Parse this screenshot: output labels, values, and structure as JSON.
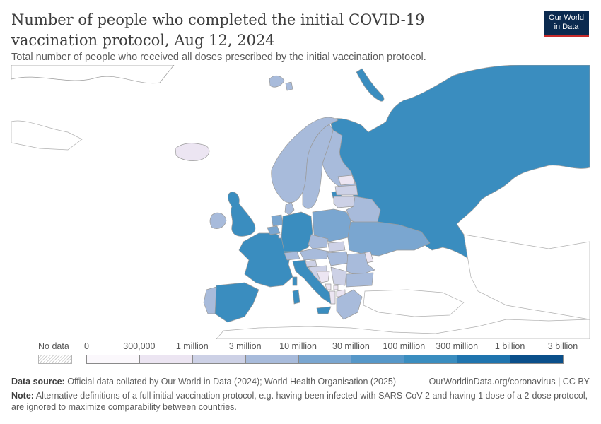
{
  "header": {
    "title": "Number of people who completed the initial COVID-19 vaccination protocol, Aug 12, 2024",
    "subtitle": "Total number of people who received all doses prescribed by the initial vaccination protocol.",
    "logo_line1": "Our World",
    "logo_line2": "in Data"
  },
  "legend": {
    "no_data_label": "No data",
    "bins": [
      {
        "label": "0",
        "color": "#fbf8fc"
      },
      {
        "label": "300,000",
        "color": "#ece5f2"
      },
      {
        "label": "1 million",
        "color": "#cdd1e6"
      },
      {
        "label": "3 million",
        "color": "#a8bbdb"
      },
      {
        "label": "10 million",
        "color": "#7aa6d0"
      },
      {
        "label": "30 million",
        "color": "#5697c8"
      },
      {
        "label": "100 million",
        "color": "#3a8dbf"
      },
      {
        "label": "300 million",
        "color": "#1f74ae"
      },
      {
        "label": "1 billion",
        "color": "#0a4f8a"
      },
      {
        "label": "3 billion",
        "color": null
      }
    ]
  },
  "footer": {
    "source_label": "Data source:",
    "source_text": "Official data collated by Our World in Data (2024); World Health Organisation (2025)",
    "url_text": "OurWorldinData.org/coronavirus | CC BY",
    "note_label": "Note:",
    "note_text": "Alternative definitions of a full initial vaccination protocol, e.g. having been infected with SARS-CoV-2 and having 1 dose of a 2-dose protocol, are ignored to maximize comparability between countries."
  },
  "map": {
    "colors": {
      "ocean": "#ffffff",
      "no_data_land": "#ffffff",
      "border": "#9a9a9a",
      "bin_30m_100m": "#3a8dbf",
      "bin_10m_30m": "#5697c8",
      "bin_3m_10m": "#7aa6d0",
      "bin_1m_3m": "#a8bbdb",
      "bin_300k_1m": "#cdd1e6",
      "bin_0_300k": "#ece5f2"
    }
  }
}
